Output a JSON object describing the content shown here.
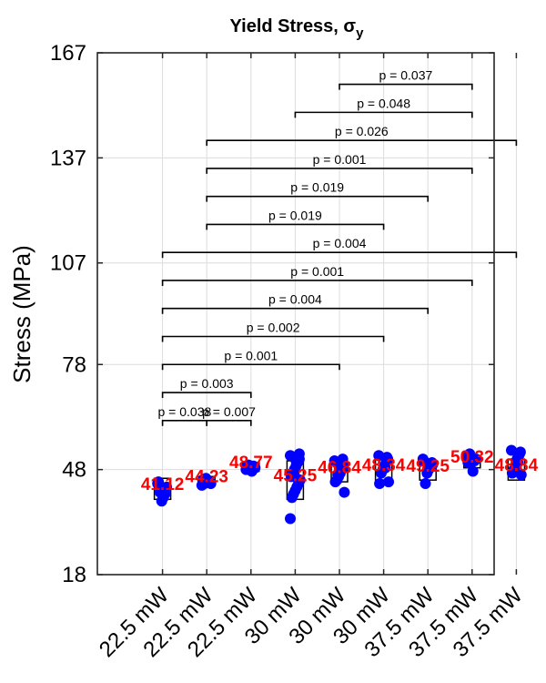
{
  "chart_data": {
    "type": "scatter",
    "title": "Yield Stress, σ",
    "title_subscript": "y",
    "ylabel": "Stress (MPa)",
    "xlabel": "",
    "ylim": [
      18,
      167
    ],
    "yticks": [
      18,
      48,
      78,
      107,
      137,
      167
    ],
    "grid": true,
    "categories": [
      "22.5 mW",
      "22.5 mW",
      "22.5 mW",
      "30 mW",
      "30 mW",
      "30 mW",
      "37.5 mW",
      "37.5 mW",
      "37.5 mW"
    ],
    "boxes": [
      {
        "low": 39.5,
        "high": 45.5
      },
      {
        "low": 43.5,
        "high": 46.0
      },
      {
        "low": 47.5,
        "high": 50.0
      },
      {
        "low": 39.5,
        "high": 50.5
      },
      {
        "low": 44.5,
        "high": 50.0
      },
      {
        "low": 45.0,
        "high": 51.0
      },
      {
        "low": 45.0,
        "high": 50.5
      },
      {
        "low": 48.5,
        "high": 52.0
      },
      {
        "low": 45.0,
        "high": 51.0
      }
    ],
    "means": [
      "41.12",
      "44.23",
      "48.77",
      "45.25",
      "46.84",
      "48.34",
      "49.25",
      "50.32",
      "48.84"
    ],
    "points": [
      [
        44,
        43,
        41,
        40,
        39,
        41.5,
        44.5
      ],
      [
        43.5,
        44,
        44.5,
        45,
        45.5,
        44,
        45
      ],
      [
        48,
        48.5,
        49,
        47.5,
        48.2,
        49.3,
        48.8
      ],
      [
        52,
        51,
        50,
        49,
        48,
        47,
        46,
        45,
        44,
        43,
        42,
        41,
        40,
        34,
        52.5,
        51.5,
        50.5,
        46.5
      ],
      [
        50.5,
        49,
        48,
        47,
        46,
        45,
        44.5,
        41.5,
        51,
        48.5,
        47.5,
        46.5
      ],
      [
        52,
        51,
        50,
        49,
        48,
        47,
        44,
        44.5,
        51.5,
        48.5
      ],
      [
        51,
        50,
        49,
        48,
        47,
        44,
        50.5,
        49.5
      ],
      [
        52,
        51,
        50.5,
        47.5,
        51.5,
        52.5,
        50
      ],
      [
        53.5,
        53,
        52,
        51,
        49,
        48,
        47,
        46.5,
        52.5,
        50
      ]
    ],
    "comparisons": [
      {
        "from": 1,
        "to": 2,
        "label": "p = 0.038",
        "level": 62
      },
      {
        "from": 2,
        "to": 3,
        "label": "p = 0.007",
        "level": 62
      },
      {
        "from": 1,
        "to": 3,
        "label": "p = 0.003",
        "level": 70
      },
      {
        "from": 1,
        "to": 5,
        "label": "p = 0.001",
        "level": 78
      },
      {
        "from": 1,
        "to": 6,
        "label": "p = 0.002",
        "level": 86
      },
      {
        "from": 1,
        "to": 7,
        "label": "p = 0.004",
        "level": 94
      },
      {
        "from": 1,
        "to": 8,
        "label": "p = 0.001",
        "level": 102
      },
      {
        "from": 1,
        "to": 9,
        "label": "p = 0.004",
        "level": 110
      },
      {
        "from": 2,
        "to": 6,
        "label": "p = 0.019",
        "level": 118
      },
      {
        "from": 2,
        "to": 7,
        "label": "p = 0.019",
        "level": 126
      },
      {
        "from": 2,
        "to": 8,
        "label": "p = 0.001",
        "level": 134
      },
      {
        "from": 2,
        "to": 9,
        "label": "p = 0.026",
        "level": 142
      },
      {
        "from": 4,
        "to": 8,
        "label": "p = 0.048",
        "level": 150
      },
      {
        "from": 5,
        "to": 8,
        "label": "p = 0.037",
        "level": 158
      }
    ],
    "colors": {
      "points": "#0000ff",
      "means": "#ff0000",
      "boxes": "#000000",
      "grid": "#dcdcdc",
      "axes": "#262626"
    }
  }
}
